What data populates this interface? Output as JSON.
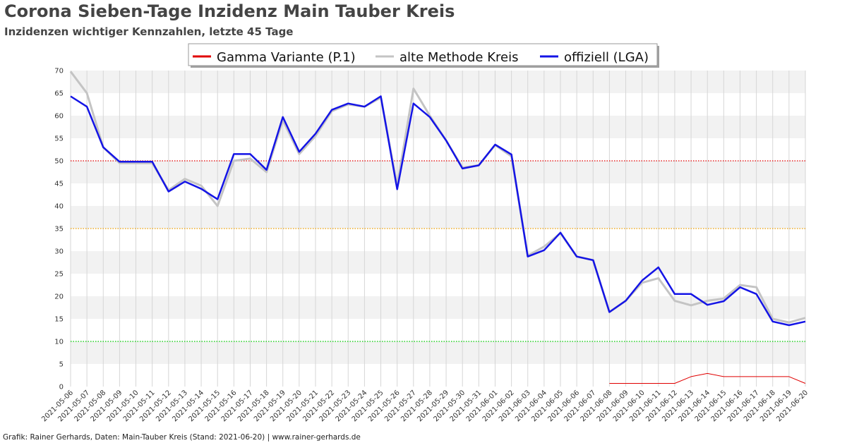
{
  "title": "Corona Sieben-Tage Inzidenz Main Tauber Kreis",
  "subtitle": "Inzidenzen wichtiger Kennzahlen, letzte 45 Tage",
  "footer": "Grafik: Rainer Gerhards, Daten: Main-Tauber Kreis (Stand: 2021-06-20) | www.rainer-gerhards.de",
  "chart_data": {
    "type": "line",
    "title": "Corona Sieben-Tage Inzidenz Main Tauber Kreis",
    "subtitle": "Inzidenzen wichtiger Kennzahlen, letzte 45 Tage",
    "xlabel": "",
    "ylabel": "",
    "ylim": [
      0,
      70
    ],
    "yticks": [
      0,
      5,
      10,
      15,
      20,
      25,
      30,
      35,
      40,
      45,
      50,
      55,
      60,
      65,
      70
    ],
    "grid": true,
    "legend_position": "top-center",
    "x": [
      "2021-05-06",
      "2021-05-07",
      "2021-05-08",
      "2021-05-09",
      "2021-05-10",
      "2021-05-11",
      "2021-05-12",
      "2021-05-13",
      "2021-05-14",
      "2021-05-15",
      "2021-05-16",
      "2021-05-17",
      "2021-05-18",
      "2021-05-19",
      "2021-05-20",
      "2021-05-21",
      "2021-05-22",
      "2021-05-23",
      "2021-05-24",
      "2021-05-25",
      "2021-05-26",
      "2021-05-27",
      "2021-05-28",
      "2021-05-29",
      "2021-05-30",
      "2021-05-31",
      "2021-06-01",
      "2021-06-02",
      "2021-06-03",
      "2021-06-04",
      "2021-06-05",
      "2021-06-06",
      "2021-06-07",
      "2021-06-08",
      "2021-06-09",
      "2021-06-10",
      "2021-06-11",
      "2021-06-12",
      "2021-06-13",
      "2021-06-14",
      "2021-06-15",
      "2021-06-16",
      "2021-06-17",
      "2021-06-18",
      "2021-06-19",
      "2021-06-20"
    ],
    "series": [
      {
        "name": "Gamma Variante (P.1)",
        "color": "#e00000",
        "width": 1,
        "values": [
          null,
          null,
          null,
          null,
          null,
          null,
          null,
          null,
          null,
          null,
          null,
          null,
          null,
          null,
          null,
          null,
          null,
          null,
          null,
          null,
          null,
          null,
          null,
          null,
          null,
          null,
          null,
          null,
          null,
          null,
          null,
          null,
          null,
          0.7,
          0.7,
          0.7,
          0.7,
          0.7,
          2.2,
          2.9,
          2.2,
          2.2,
          2.2,
          2.2,
          2.2,
          0.7
        ]
      },
      {
        "name": "alte Methode Kreis",
        "color": "#c4c4c4",
        "width": 3,
        "values": [
          69.8,
          65.0,
          53.0,
          49.5,
          49.5,
          49.5,
          43.5,
          46.0,
          44.5,
          40.0,
          50.0,
          50.5,
          47.5,
          59.0,
          51.5,
          55.5,
          61.0,
          62.5,
          62.0,
          64.0,
          44.5,
          66.0,
          60.0,
          54.5,
          48.5,
          49.0,
          53.5,
          51.0,
          29.0,
          31.0,
          34.0,
          28.8,
          28.0,
          16.5,
          19.0,
          23.0,
          24.0,
          19.0,
          18.0,
          19.0,
          19.5,
          22.5,
          22.0,
          15.0,
          14.2,
          15.2
        ]
      },
      {
        "name": "offiziell (LGA)",
        "color": "#1414e6",
        "width": 2.5,
        "values": [
          64.3,
          62.0,
          53.0,
          49.8,
          49.8,
          49.8,
          43.2,
          45.4,
          43.8,
          41.5,
          51.5,
          51.5,
          48.0,
          59.7,
          52.0,
          56.0,
          61.3,
          62.7,
          62.0,
          64.3,
          43.7,
          62.7,
          59.7,
          54.5,
          48.3,
          49.0,
          53.6,
          51.4,
          28.8,
          30.2,
          34.1,
          28.8,
          28.0,
          16.5,
          19.0,
          23.5,
          26.4,
          20.5,
          20.5,
          18.1,
          18.9,
          22.0,
          20.5,
          14.4,
          13.6,
          14.4
        ]
      }
    ],
    "reference_lines": [
      {
        "value": 50,
        "color": "#e00000"
      },
      {
        "value": 35,
        "color": "#f0a000"
      },
      {
        "value": 10,
        "color": "#00cc00"
      }
    ]
  }
}
